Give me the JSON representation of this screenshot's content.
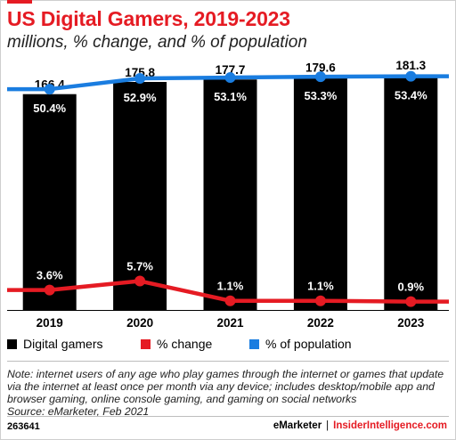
{
  "title": "US Digital Gamers, 2019-2023",
  "subtitle": "millions, % change, and % of population",
  "legend": [
    {
      "label": "Digital gamers",
      "color": "#000000"
    },
    {
      "label": "% change",
      "color": "#e51b23"
    },
    {
      "label": "% of population",
      "color": "#1a7de0"
    }
  ],
  "note": "Note: internet users of any age who play games through the internet or games that update via the internet at least once per month via any device; includes desktop/mobile app and browser gaming, online console gaming, and gaming on social networks",
  "source": "Source: eMarketer, Feb 2021",
  "footer": {
    "id": "263641",
    "brand_emarketer": "eMarketer",
    "separator": "|",
    "brand_insider": "InsiderIntelligence.com"
  },
  "chart_data": {
    "type": "bar",
    "categories": [
      "2019",
      "2020",
      "2021",
      "2022",
      "2023"
    ],
    "series": [
      {
        "name": "Digital gamers",
        "type": "bar",
        "color": "#000000",
        "values": [
          166.4,
          175.8,
          177.7,
          179.6,
          181.3
        ],
        "labels": [
          "166.4",
          "175.8",
          "177.7",
          "179.6",
          "181.3"
        ]
      },
      {
        "name": "% change",
        "type": "line",
        "color": "#e51b23",
        "values": [
          3.6,
          5.7,
          1.1,
          1.1,
          0.9
        ],
        "labels": [
          "3.6%",
          "5.7%",
          "1.1%",
          "1.1%",
          "0.9%"
        ]
      },
      {
        "name": "% of population",
        "type": "line",
        "color": "#1a7de0",
        "values": [
          50.4,
          52.9,
          53.1,
          53.3,
          53.4
        ],
        "labels": [
          "50.4%",
          "52.9%",
          "53.1%",
          "53.3%",
          "53.4%"
        ]
      }
    ],
    "ylim_bar": [
      0,
      181.3
    ],
    "ylim_pct": [
      0,
      100
    ],
    "legend_position": "bottom",
    "grid": false
  }
}
